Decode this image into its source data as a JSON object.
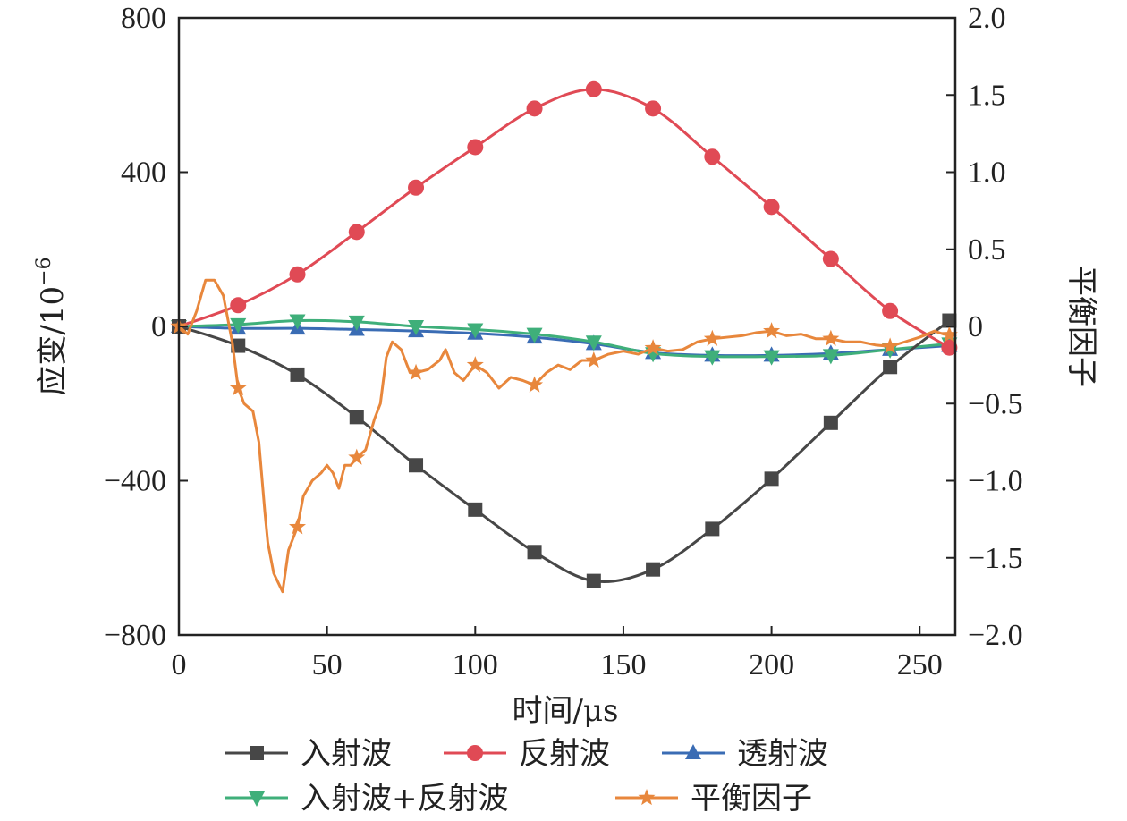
{
  "chart_data": {
    "type": "line",
    "xlabel": "时间/μs",
    "ylabel_left": "应变/10",
    "ylabel_left_exponent": "−6",
    "ylabel_right": "平衡因子",
    "xlim": [
      0,
      262
    ],
    "ylim_left": [
      -800,
      800
    ],
    "ylim_right": [
      -2.0,
      2.0
    ],
    "xticks": [
      0,
      50,
      100,
      150,
      200,
      250
    ],
    "xtick_labels": [
      "0",
      "50",
      "100",
      "150",
      "200",
      "250"
    ],
    "yticks_left": [
      800,
      400,
      0,
      -400,
      -800
    ],
    "ytick_labels_left": [
      "800",
      "400",
      "0",
      "−400",
      "−800"
    ],
    "yticks_right": [
      2.0,
      1.5,
      1.0,
      0.5,
      0,
      -0.5,
      -1.0,
      -1.5,
      -2.0
    ],
    "ytick_labels_right": [
      "2.0",
      "1.5",
      "1.0",
      "0.5",
      "0",
      "−0.5",
      "−1.0",
      "−1.5",
      "−2.0"
    ],
    "legend_position": "bottom",
    "series": [
      {
        "name": "入射波",
        "axis": "left",
        "color": "#474747",
        "marker": "square",
        "x": [
          0,
          20,
          40,
          60,
          80,
          100,
          120,
          140,
          160,
          180,
          200,
          220,
          240,
          260
        ],
        "y": [
          0,
          -50,
          -125,
          -235,
          -360,
          -475,
          -585,
          -660,
          -630,
          -525,
          -395,
          -250,
          -105,
          15
        ],
        "markers_x": [
          0,
          20,
          40,
          60,
          80,
          100,
          120,
          140,
          160,
          180,
          200,
          220,
          240,
          260
        ]
      },
      {
        "name": "反射波",
        "axis": "left",
        "color": "#E04A55",
        "marker": "circle",
        "x": [
          0,
          20,
          40,
          60,
          80,
          100,
          120,
          140,
          160,
          180,
          200,
          220,
          240,
          260
        ],
        "y": [
          0,
          55,
          135,
          245,
          360,
          465,
          565,
          615,
          565,
          440,
          310,
          175,
          40,
          -55
        ],
        "markers_x": [
          20,
          40,
          60,
          80,
          100,
          120,
          140,
          160,
          180,
          200,
          220,
          240,
          260
        ]
      },
      {
        "name": "透射波",
        "axis": "left",
        "color": "#3A6CB4",
        "marker": "triangle-up",
        "x": [
          0,
          20,
          40,
          60,
          80,
          100,
          120,
          140,
          160,
          180,
          200,
          220,
          240,
          260
        ],
        "y": [
          0,
          -5,
          -5,
          -8,
          -12,
          -18,
          -28,
          -45,
          -68,
          -75,
          -75,
          -70,
          -60,
          -50
        ],
        "markers_x": [
          0,
          20,
          40,
          60,
          80,
          100,
          120,
          140,
          160,
          180,
          200,
          220,
          240,
          260
        ]
      },
      {
        "name": "入射波+反射波",
        "axis": "left",
        "color": "#3FAF7A",
        "marker": "triangle-down",
        "x": [
          0,
          20,
          40,
          60,
          80,
          100,
          120,
          140,
          160,
          180,
          200,
          220,
          240,
          260
        ],
        "y": [
          0,
          5,
          15,
          12,
          0,
          -8,
          -20,
          -40,
          -70,
          -78,
          -78,
          -75,
          -60,
          -45
        ],
        "markers_x": [
          0,
          20,
          40,
          60,
          80,
          100,
          120,
          140,
          160,
          180,
          200,
          220,
          240,
          260
        ]
      },
      {
        "name": "平衡因子",
        "axis": "right",
        "color": "#E8873C",
        "marker": "star",
        "x": [
          0,
          3,
          6,
          9,
          12,
          15,
          18,
          20,
          22,
          25,
          27,
          29,
          30,
          32,
          35,
          37,
          40,
          42,
          45,
          48,
          50,
          52,
          54,
          56,
          58,
          60,
          63,
          66,
          68,
          70,
          72,
          75,
          78,
          80,
          84,
          88,
          90,
          93,
          96,
          100,
          104,
          108,
          112,
          116,
          120,
          124,
          128,
          132,
          136,
          140,
          145,
          150,
          155,
          160,
          165,
          170,
          175,
          180,
          185,
          190,
          195,
          200,
          205,
          210,
          215,
          220,
          225,
          230,
          235,
          240,
          245,
          250,
          255,
          258,
          262
        ],
        "y": [
          0.0,
          -0.05,
          0.1,
          0.3,
          0.3,
          0.2,
          -0.1,
          -0.4,
          -0.5,
          -0.55,
          -0.75,
          -1.2,
          -1.4,
          -1.6,
          -1.72,
          -1.45,
          -1.3,
          -1.1,
          -1.0,
          -0.95,
          -0.9,
          -0.95,
          -1.05,
          -0.9,
          -0.9,
          -0.85,
          -0.8,
          -0.6,
          -0.5,
          -0.2,
          -0.1,
          -0.15,
          -0.3,
          -0.3,
          -0.28,
          -0.22,
          -0.15,
          -0.3,
          -0.35,
          -0.25,
          -0.3,
          -0.4,
          -0.33,
          -0.35,
          -0.38,
          -0.3,
          -0.25,
          -0.28,
          -0.22,
          -0.22,
          -0.18,
          -0.16,
          -0.18,
          -0.14,
          -0.16,
          -0.15,
          -0.1,
          -0.08,
          -0.07,
          -0.06,
          -0.04,
          -0.03,
          -0.06,
          -0.05,
          -0.08,
          -0.08,
          -0.1,
          -0.1,
          -0.12,
          -0.13,
          -0.1,
          -0.07,
          -0.03,
          -0.05,
          -0.06
        ],
        "markers_x": [
          0,
          20,
          40,
          60,
          80,
          100,
          120,
          140,
          160,
          180,
          200,
          220,
          240,
          260
        ]
      }
    ]
  }
}
